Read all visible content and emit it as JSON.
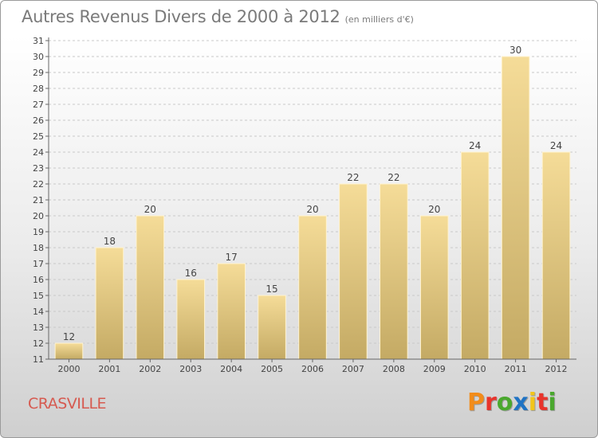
{
  "header": {
    "title": "Autres Revenus Divers de 2000 à 2012",
    "subtitle": "(en milliers d'€)"
  },
  "footer": {
    "commune": "CRASVILLE",
    "logo": "Proxiti",
    "logo_colors": [
      "#f28c1a",
      "#e8342c",
      "#4aa82e",
      "#1f73c4",
      "#f2c51a",
      "#e8342c",
      "#4aa82e"
    ]
  },
  "chart_data": {
    "type": "bar",
    "categories": [
      "2000",
      "2001",
      "2002",
      "2003",
      "2004",
      "2005",
      "2006",
      "2007",
      "2008",
      "2009",
      "2010",
      "2011",
      "2012"
    ],
    "values": [
      12,
      18,
      20,
      16,
      17,
      15,
      20,
      22,
      22,
      20,
      24,
      30,
      24
    ],
    "title": "Autres Revenus Divers de 2000 à 2012",
    "xlabel": "",
    "ylabel": "",
    "ylim": [
      11,
      31
    ],
    "yticks": [
      11,
      12,
      13,
      14,
      15,
      16,
      17,
      18,
      19,
      20,
      21,
      22,
      23,
      24,
      25,
      26,
      27,
      28,
      29,
      30,
      31
    ],
    "grid": true,
    "data_labels": true,
    "bar_color_top": "#f5dc98",
    "bar_color_bottom": "#c4aa64"
  }
}
